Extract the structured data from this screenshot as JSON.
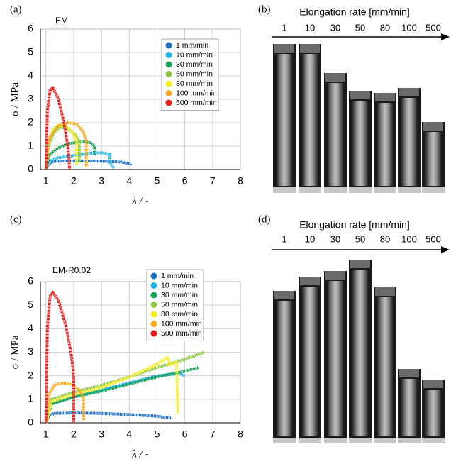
{
  "chart_data": [
    {
      "type": "line",
      "panel_label": "(a)",
      "title": "EM",
      "x_label": "λ / -",
      "y_label": "σ / MPa",
      "xlim": [
        0.8,
        8
      ],
      "xticks": [
        1,
        2,
        3,
        4,
        5,
        6,
        7,
        8
      ],
      "ylim": [
        0,
        6
      ],
      "yticks": [
        0,
        1,
        2,
        3,
        4,
        5,
        6
      ],
      "grid": true,
      "legend": "upper-right",
      "series": [
        {
          "name": "1 mm/min",
          "color": "#1f6fc0",
          "x": [
            1.0,
            1.1,
            1.3,
            2.0,
            3.0,
            3.7,
            4.05,
            4.05
          ],
          "values": [
            0,
            0.25,
            0.35,
            0.37,
            0.36,
            0.32,
            0.25,
            0.2
          ]
        },
        {
          "name": "10 mm/min",
          "color": "#19b4ea",
          "x": [
            1.0,
            1.1,
            1.4,
            2.0,
            2.6,
            3.0,
            3.3,
            3.3,
            3.45
          ],
          "values": [
            0,
            0.35,
            0.5,
            0.6,
            0.7,
            0.72,
            0.65,
            0.3,
            0.05
          ]
        },
        {
          "name": "30 mm/min",
          "color": "#1aa055",
          "x": [
            1.0,
            1.1,
            1.4,
            1.8,
            2.3,
            2.6,
            2.75,
            2.75
          ],
          "values": [
            0,
            0.6,
            0.9,
            1.1,
            1.2,
            1.15,
            1.0,
            0.6
          ]
        },
        {
          "name": "50 mm/min",
          "color": "#8cc63e",
          "x": [
            1.0,
            1.08,
            1.3,
            1.5,
            1.8,
            2.05,
            2.2,
            2.2
          ],
          "values": [
            0,
            1.0,
            1.6,
            1.8,
            1.75,
            1.5,
            1.2,
            0.3
          ]
        },
        {
          "name": "80 mm/min",
          "color": "#f4ee1a",
          "x": [
            1.0,
            1.08,
            1.25,
            1.45,
            1.75,
            2.0,
            2.1,
            2.1
          ],
          "values": [
            0,
            1.2,
            1.7,
            1.9,
            1.85,
            1.5,
            1.2,
            0.2
          ]
        },
        {
          "name": "100 mm/min",
          "color": "#f7a81c",
          "x": [
            1.0,
            1.1,
            1.4,
            1.8,
            2.1,
            2.35,
            2.45,
            2.45
          ],
          "values": [
            0,
            1.3,
            1.85,
            2.0,
            1.95,
            1.6,
            1.2,
            0.1
          ]
        },
        {
          "name": "500 mm/min",
          "color": "#e61e1e",
          "x": [
            1.0,
            1.05,
            1.15,
            1.25,
            1.45,
            1.65,
            1.8,
            1.85
          ],
          "values": [
            0,
            2.5,
            3.4,
            3.5,
            3.0,
            2.0,
            0.9,
            0
          ]
        }
      ]
    },
    {
      "type": "line",
      "panel_label": "(c)",
      "title": "EM-R0.02",
      "x_label": "λ / -",
      "y_label": "σ / MPa",
      "xlim": [
        0.8,
        8
      ],
      "xticks": [
        1,
        2,
        3,
        4,
        5,
        6,
        7,
        8
      ],
      "ylim": [
        0,
        6
      ],
      "yticks": [
        0,
        1,
        2,
        3,
        4,
        5,
        6
      ],
      "grid": true,
      "legend": "upper-right",
      "series": [
        {
          "name": "1 mm/min",
          "color": "#1f6fc0",
          "x": [
            1.0,
            1.1,
            1.3,
            2.0,
            3.0,
            4.0,
            5.0,
            5.5
          ],
          "values": [
            0,
            0.3,
            0.4,
            0.42,
            0.4,
            0.35,
            0.28,
            0.2
          ]
        },
        {
          "name": "10 mm/min",
          "color": "#19b4ea",
          "x": [
            1.0,
            1.15,
            2.0,
            3.0,
            4.0,
            5.0,
            5.8,
            6.0
          ],
          "values": [
            0,
            0.8,
            1.1,
            1.4,
            1.7,
            2.0,
            2.1,
            2.0
          ]
        },
        {
          "name": "30 mm/min",
          "color": "#1aa055",
          "x": [
            1.0,
            1.2,
            2.0,
            3.0,
            4.0,
            5.0,
            6.0,
            6.5
          ],
          "values": [
            0,
            0.8,
            1.1,
            1.35,
            1.65,
            1.95,
            2.2,
            2.35
          ]
        },
        {
          "name": "50 mm/min",
          "color": "#8cc63e",
          "x": [
            1.0,
            1.2,
            2.0,
            3.0,
            4.0,
            5.0,
            6.0,
            6.7
          ],
          "values": [
            0,
            1.0,
            1.3,
            1.6,
            1.95,
            2.35,
            2.7,
            3.0
          ]
        },
        {
          "name": "80 mm/min",
          "color": "#f4ee1a",
          "x": [
            1.0,
            1.2,
            2.0,
            3.0,
            4.0,
            5.0,
            5.4,
            5.45,
            5.7,
            5.75
          ],
          "values": [
            0,
            0.9,
            1.2,
            1.5,
            1.95,
            2.5,
            2.8,
            2.45,
            2.6,
            0.4
          ]
        },
        {
          "name": "100 mm/min",
          "color": "#f7a81c",
          "x": [
            1.0,
            1.1,
            1.3,
            1.6,
            1.9,
            2.2,
            2.35,
            2.35
          ],
          "values": [
            0,
            1.2,
            1.6,
            1.7,
            1.65,
            1.4,
            1.0,
            0.1
          ]
        },
        {
          "name": "500 mm/min",
          "color": "#e61e1e",
          "x": [
            1.0,
            1.05,
            1.15,
            1.25,
            1.45,
            1.7,
            1.9,
            2.0,
            2.0
          ],
          "values": [
            0,
            4.0,
            5.4,
            5.55,
            5.2,
            4.2,
            3.0,
            2.0,
            0
          ]
        }
      ]
    }
  ],
  "panels": [
    {
      "label": "(b)",
      "header": "Elongation rate [mm/min]",
      "rates": [
        "1",
        "10",
        "30",
        "50",
        "80",
        "100",
        "500"
      ]
    },
    {
      "label": "(d)",
      "header": "Elongation rate [mm/min]",
      "rates": [
        "1",
        "10",
        "30",
        "50",
        "80",
        "100",
        "500"
      ]
    }
  ]
}
